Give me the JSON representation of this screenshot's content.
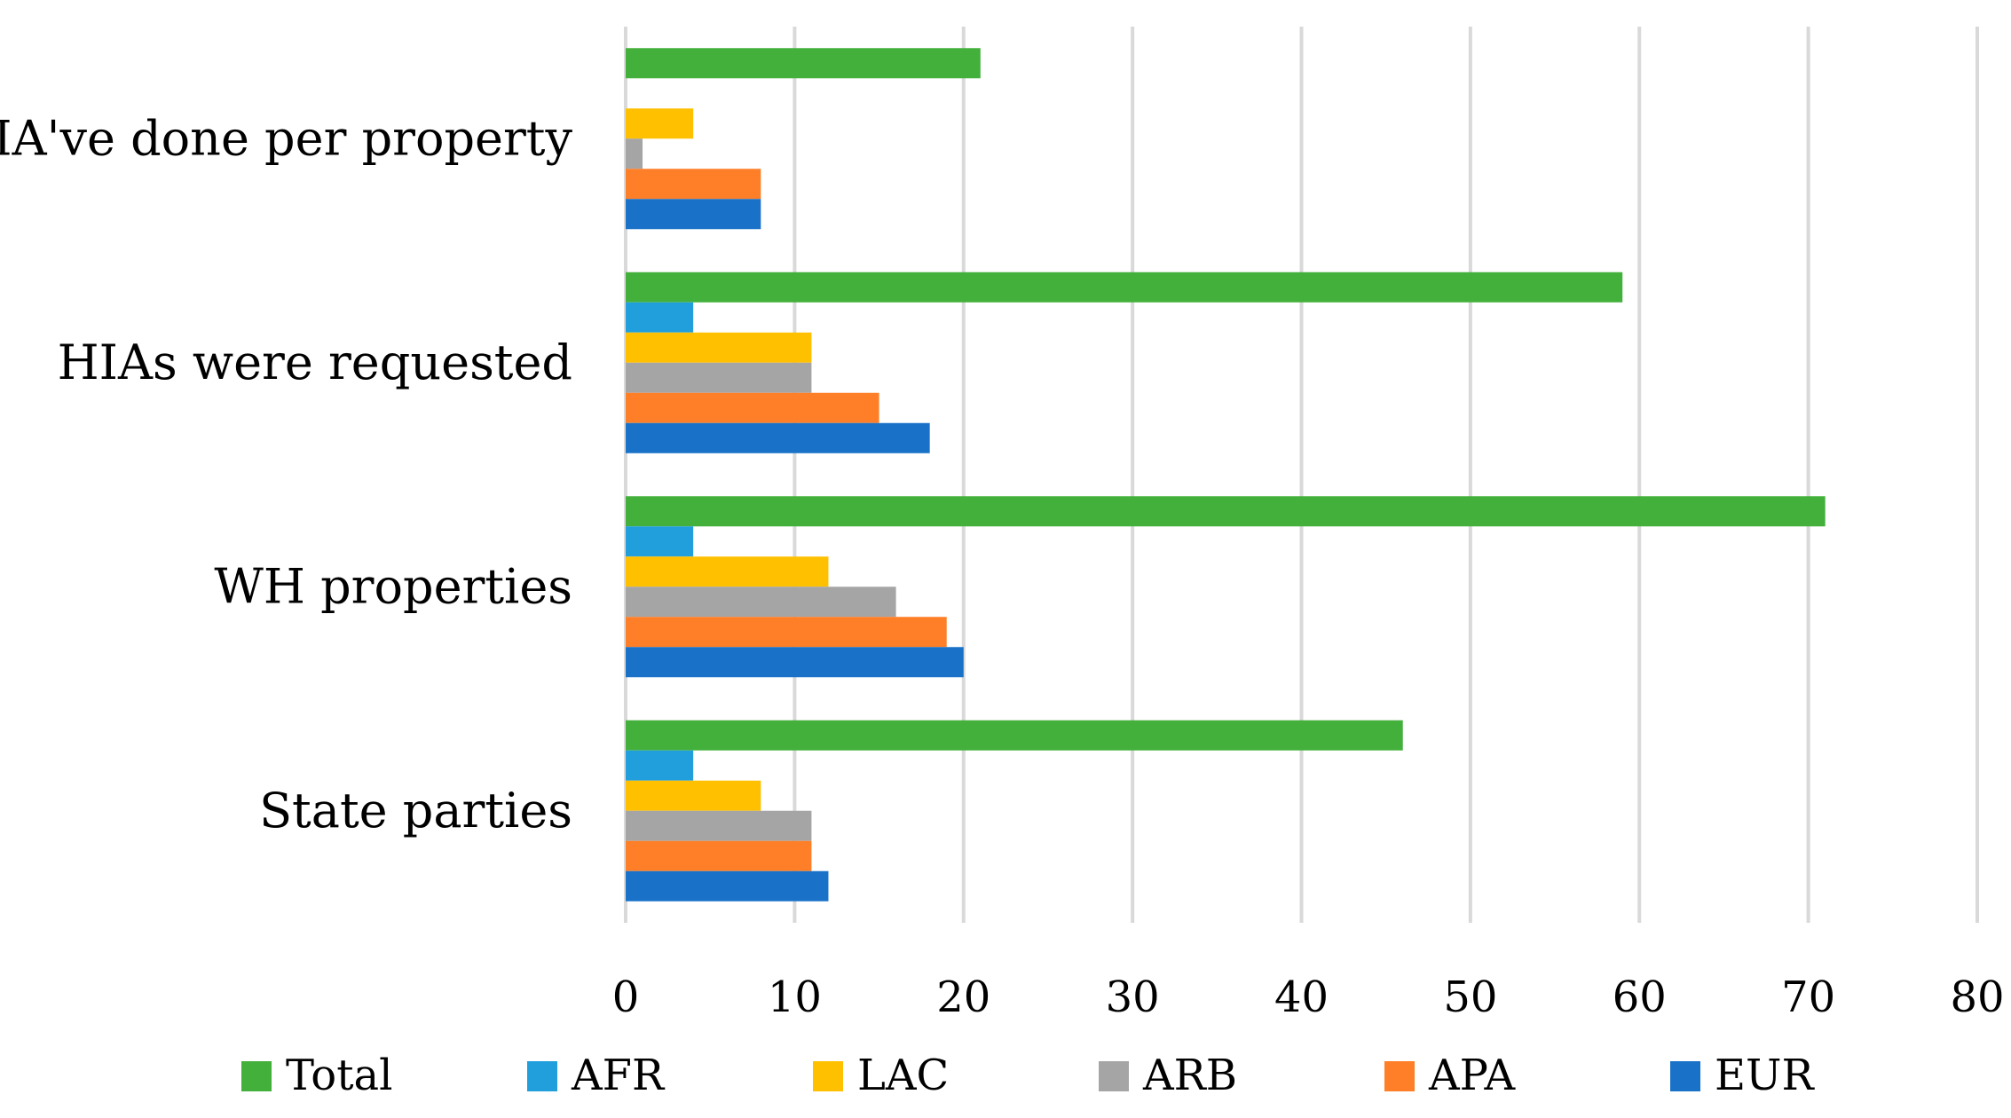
{
  "chart_data": {
    "type": "bar",
    "orientation": "horizontal",
    "title": "",
    "xlabel": "",
    "ylabel": "",
    "xlim": [
      0,
      80
    ],
    "xticks": [
      0,
      10,
      20,
      30,
      40,
      50,
      60,
      70,
      80
    ],
    "grid": true,
    "legend_position": "bottom",
    "categories": [
      "HIA've done per property",
      "HIAs were requested",
      "WH properties",
      "State parties"
    ],
    "series": [
      {
        "name": "Total",
        "color": "#43b03c",
        "values": [
          21,
          59,
          71,
          46
        ]
      },
      {
        "name": "AFR",
        "color": "#209fdc",
        "values": [
          0,
          4,
          4,
          4
        ]
      },
      {
        "name": "LAC",
        "color": "#ffc000",
        "values": [
          4,
          11,
          12,
          8
        ]
      },
      {
        "name": "ARB",
        "color": "#a5a5a5",
        "values": [
          1,
          11,
          16,
          11
        ]
      },
      {
        "name": "APA",
        "color": "#fe7f27",
        "values": [
          8,
          15,
          19,
          11
        ]
      },
      {
        "name": "EUR",
        "color": "#1972c8",
        "values": [
          8,
          18,
          20,
          12
        ]
      }
    ]
  }
}
